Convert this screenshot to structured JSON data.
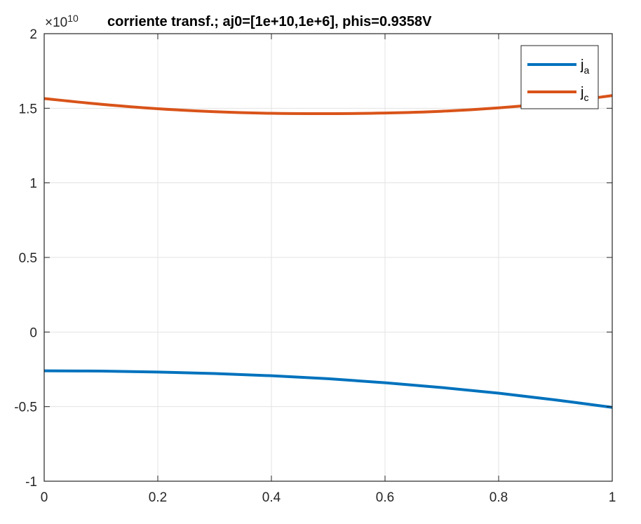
{
  "chart_data": {
    "type": "line",
    "title": "corriente transf.; aj0=[1e+10,1e+6], phis=0.9358V",
    "y_exponent": {
      "base": "×10",
      "power": "10"
    },
    "xlim": [
      0,
      1
    ],
    "ylim": [
      -1,
      2
    ],
    "xticks": [
      0,
      0.2,
      0.4,
      0.6,
      0.8,
      1
    ],
    "yticks": [
      -1,
      -0.5,
      0,
      0.5,
      1,
      1.5,
      2
    ],
    "xtick_labels": [
      "0",
      "0.2",
      "0.4",
      "0.6",
      "0.8",
      "1"
    ],
    "ytick_labels": [
      "-1",
      "-0.5",
      "0",
      "0.5",
      "1",
      "1.5",
      "2"
    ],
    "grid": true,
    "legend_position": "top-right",
    "series": [
      {
        "name": "j",
        "subscript": "a",
        "color": "#0072BD",
        "x": [
          0,
          0.1,
          0.2,
          0.3,
          0.4,
          0.5,
          0.6,
          0.7,
          0.8,
          0.9,
          1.0
        ],
        "y": [
          -0.26,
          -0.262,
          -0.268,
          -0.278,
          -0.293,
          -0.313,
          -0.34,
          -0.372,
          -0.41,
          -0.455,
          -0.505
        ]
      },
      {
        "name": "j",
        "subscript": "c",
        "color": "#D95319",
        "x": [
          0,
          0.1,
          0.2,
          0.3,
          0.4,
          0.5,
          0.6,
          0.7,
          0.8,
          0.9,
          1.0
        ],
        "y": [
          1.565,
          1.527,
          1.497,
          1.477,
          1.466,
          1.464,
          1.468,
          1.48,
          1.503,
          1.537,
          1.585
        ]
      }
    ]
  }
}
